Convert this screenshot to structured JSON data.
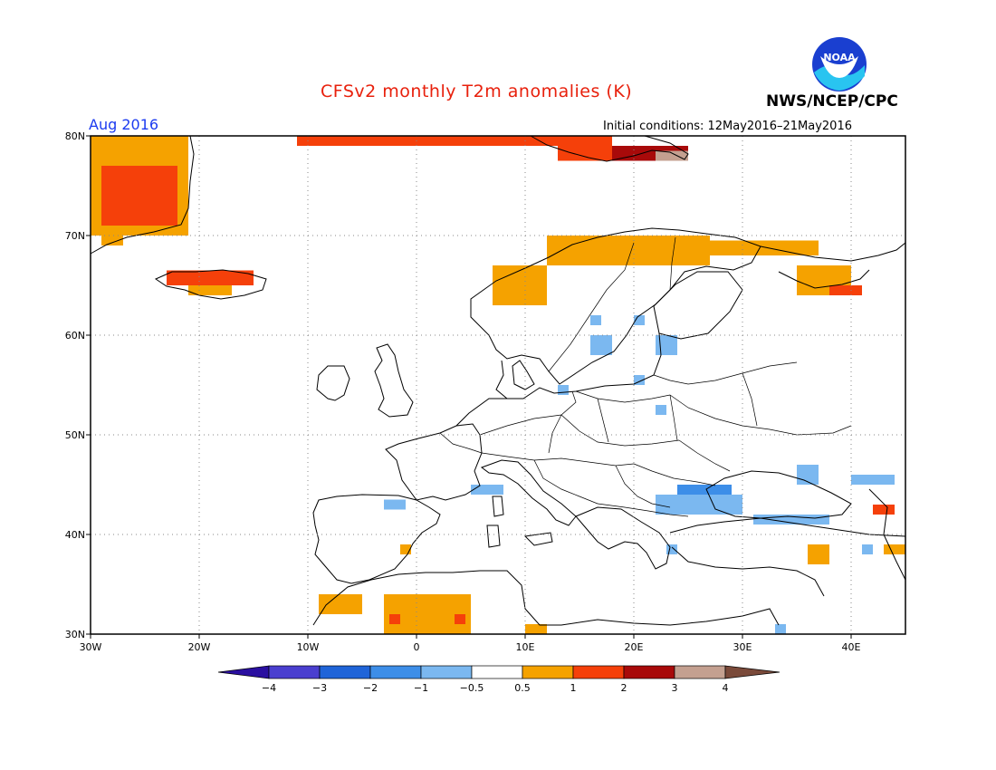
{
  "title": "CFSv2 monthly T2m anomalies (K)",
  "organization": "NWS/NCEP/CPC",
  "logo_text": "NOAA",
  "valid_month": "Aug 2016",
  "initial_conditions": "Initial conditions: 12May2016–21May2016",
  "axes": {
    "lon_ticks": [
      {
        "value": -30,
        "label": "30W"
      },
      {
        "value": -20,
        "label": "20W"
      },
      {
        "value": -10,
        "label": "10W"
      },
      {
        "value": 0,
        "label": "0"
      },
      {
        "value": 10,
        "label": "10E"
      },
      {
        "value": 20,
        "label": "20E"
      },
      {
        "value": 30,
        "label": "30E"
      },
      {
        "value": 40,
        "label": "40E"
      }
    ],
    "lat_ticks": [
      {
        "value": 30,
        "label": "30N"
      },
      {
        "value": 40,
        "label": "40N"
      },
      {
        "value": 50,
        "label": "50N"
      },
      {
        "value": 60,
        "label": "60N"
      },
      {
        "value": 70,
        "label": "70N"
      },
      {
        "value": 80,
        "label": "80N"
      }
    ],
    "lon_range": [
      -30,
      45
    ],
    "lat_range": [
      30,
      80
    ],
    "grid": "dotted"
  },
  "colorbar": {
    "labels": [
      "−4",
      "−3",
      "−2",
      "−1",
      "−0.5",
      "0.5",
      "1",
      "2",
      "3",
      "4"
    ],
    "colors": [
      "#2a0fa0",
      "#4a3fcf",
      "#1f64d8",
      "#3d8ee8",
      "#7bb8f0",
      "#ffffff",
      "#f5a200",
      "#f5400a",
      "#a80a0a",
      "#c4a090",
      "#7a4a3a"
    ]
  },
  "anomaly_cells": [
    {
      "lon0": -30,
      "lat0": 70,
      "lon1": -21,
      "lat1": 80,
      "class": "1"
    },
    {
      "lon0": -29,
      "lat0": 71,
      "lon1": -22,
      "lat1": 77,
      "class": "2"
    },
    {
      "lon0": -29,
      "lat0": 69,
      "lon1": -27,
      "lat1": 70,
      "class": "1"
    },
    {
      "lon0": -23,
      "lat0": 65,
      "lon1": -15,
      "lat1": 66.5,
      "class": "2"
    },
    {
      "lon0": -21,
      "lat0": 64,
      "lon1": -17,
      "lat1": 65,
      "class": "1"
    },
    {
      "lon0": -11,
      "lat0": 79,
      "lon1": 18,
      "lat1": 80,
      "class": "2"
    },
    {
      "lon0": 13,
      "lat0": 77.5,
      "lon1": 18,
      "lat1": 79.5,
      "class": "2"
    },
    {
      "lon0": 18,
      "lat0": 77.5,
      "lon1": 25,
      "lat1": 79,
      "class": "3"
    },
    {
      "lon0": 22,
      "lat0": 77.5,
      "lon1": 25,
      "lat1": 78.5,
      "class": "4"
    },
    {
      "lon0": 12,
      "lat0": 67,
      "lon1": 27,
      "lat1": 70,
      "class": "1"
    },
    {
      "lon0": 27,
      "lat0": 68,
      "lon1": 37,
      "lat1": 69.5,
      "class": "1"
    },
    {
      "lon0": 7,
      "lat0": 63,
      "lon1": 12,
      "lat1": 67,
      "class": "1"
    },
    {
      "lon0": 35,
      "lat0": 64,
      "lon1": 40,
      "lat1": 67,
      "class": "1"
    },
    {
      "lon0": 38,
      "lat0": 64,
      "lon1": 41,
      "lat1": 65,
      "class": "2"
    },
    {
      "lon0": 24,
      "lat0": 43,
      "lon1": 29,
      "lat1": 45,
      "class": "-1"
    },
    {
      "lon0": 23,
      "lat0": 42,
      "lon1": 27,
      "lat1": 43,
      "class": "-2"
    },
    {
      "lon0": 22,
      "lat0": 42,
      "lon1": 30,
      "lat1": 44,
      "class": "-0.5"
    },
    {
      "lon0": 31,
      "lat0": 41,
      "lon1": 38,
      "lat1": 42,
      "class": "-0.5"
    },
    {
      "lon0": 35,
      "lat0": 45,
      "lon1": 37,
      "lat1": 47,
      "class": "-0.5"
    },
    {
      "lon0": 40,
      "lat0": 45,
      "lon1": 44,
      "lat1": 46,
      "class": "-0.5"
    },
    {
      "lon0": 16,
      "lat0": 58,
      "lon1": 18,
      "lat1": 60,
      "class": "-0.5"
    },
    {
      "lon0": 16,
      "lat0": 61,
      "lon1": 17,
      "lat1": 62,
      "class": "-0.5"
    },
    {
      "lon0": 20,
      "lat0": 61,
      "lon1": 21,
      "lat1": 62,
      "class": "-0.5"
    },
    {
      "lon0": 22,
      "lat0": 58,
      "lon1": 24,
      "lat1": 60,
      "class": "-0.5"
    },
    {
      "lon0": 13,
      "lat0": 54,
      "lon1": 14,
      "lat1": 55,
      "class": "-0.5"
    },
    {
      "lon0": 20,
      "lat0": 55,
      "lon1": 21,
      "lat1": 56,
      "class": "-0.5"
    },
    {
      "lon0": 22,
      "lat0": 52,
      "lon1": 23,
      "lat1": 53,
      "class": "-0.5"
    },
    {
      "lon0": -3,
      "lat0": 42.5,
      "lon1": -1,
      "lat1": 43.5,
      "class": "-0.5"
    },
    {
      "lon0": 5,
      "lat0": 44,
      "lon1": 8,
      "lat1": 45,
      "class": "-0.5"
    },
    {
      "lon0": 23,
      "lat0": 38,
      "lon1": 24,
      "lat1": 39,
      "class": "-0.5"
    },
    {
      "lon0": 42,
      "lat0": 42,
      "lon1": 44,
      "lat1": 43,
      "class": "2"
    },
    {
      "lon0": 36,
      "lat0": 37,
      "lon1": 38,
      "lat1": 39,
      "class": "1"
    },
    {
      "lon0": 43,
      "lat0": 38,
      "lon1": 45,
      "lat1": 39,
      "class": "1"
    },
    {
      "lon0": 41,
      "lat0": 38,
      "lon1": 42,
      "lat1": 39,
      "class": "-0.5"
    },
    {
      "lon0": -3,
      "lat0": 30,
      "lon1": 5,
      "lat1": 34,
      "class": "1"
    },
    {
      "lon0": -2.5,
      "lat0": 31,
      "lon1": -1.5,
      "lat1": 32,
      "class": "2"
    },
    {
      "lon0": 3.5,
      "lat0": 31,
      "lon1": 4.5,
      "lat1": 32,
      "class": "2"
    },
    {
      "lon0": -9,
      "lat0": 32,
      "lon1": -5,
      "lat1": 34,
      "class": "1"
    },
    {
      "lon0": -1.5,
      "lat0": 38,
      "lon1": -0.5,
      "lat1": 39,
      "class": "1"
    },
    {
      "lon0": 10,
      "lat0": 30,
      "lon1": 12,
      "lat1": 31,
      "class": "1"
    },
    {
      "lon0": 33,
      "lat0": 30,
      "lon1": 34,
      "lat1": 31,
      "class": "-0.5"
    }
  ]
}
